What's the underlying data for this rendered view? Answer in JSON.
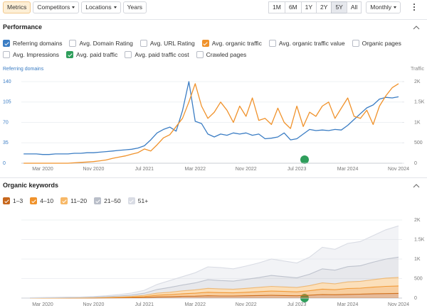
{
  "toolbar": {
    "tabs": [
      {
        "label": "Metrics",
        "active": true,
        "dropdown": false
      },
      {
        "label": "Competitors",
        "dropdown": true
      },
      {
        "label": "Locations",
        "dropdown": true
      },
      {
        "label": "Years",
        "dropdown": false
      }
    ],
    "ranges": [
      {
        "label": "1M"
      },
      {
        "label": "6M"
      },
      {
        "label": "1Y"
      },
      {
        "label": "2Y"
      },
      {
        "label": "5Y",
        "active": true
      },
      {
        "label": "All"
      }
    ],
    "interval": "Monthly"
  },
  "performance_metrics": [
    {
      "label": "Referring domains",
      "checked": true,
      "color": "#3b7dc4"
    },
    {
      "label": "Avg. Domain Rating",
      "checked": false
    },
    {
      "label": "Avg. URL Rating",
      "checked": false
    },
    {
      "label": "Avg. organic traffic",
      "checked": true,
      "color": "#f0922b"
    },
    {
      "label": "Avg. organic traffic value",
      "checked": false
    },
    {
      "label": "Organic pages",
      "checked": false
    },
    {
      "label": "Avg. Impressions",
      "checked": false
    },
    {
      "label": "Avg. paid traffic",
      "checked": true,
      "color": "#2e9e5b"
    },
    {
      "label": "Avg. paid traffic cost",
      "checked": false
    },
    {
      "label": "Crawled pages",
      "checked": false
    }
  ],
  "chart_data": [
    {
      "type": "line",
      "title": "Performance",
      "y_label": "Referring domains",
      "y2_label": "Traffic",
      "categories": [
        null,
        null,
        null,
        "Mar 2020",
        null,
        null,
        null,
        null,
        null,
        null,
        null,
        "Nov 2020",
        null,
        null,
        null,
        null,
        null,
        null,
        null,
        "Jul 2021",
        null,
        null,
        null,
        null,
        null,
        null,
        null,
        "Mar 2022",
        null,
        null,
        null,
        null,
        null,
        null,
        null,
        "Nov 2022",
        null,
        null,
        null,
        null,
        null,
        null,
        null,
        "Jul 2023",
        null,
        null,
        null,
        null,
        null,
        null,
        null,
        "Mar 2024",
        null,
        null,
        null,
        null,
        null,
        null,
        null,
        "Nov 2024"
      ],
      "series": [
        {
          "color": "#3b7dc4",
          "axis": "y",
          "values": [
            16,
            16,
            16,
            15,
            15,
            16,
            16,
            16,
            17,
            17,
            18,
            18,
            19,
            20,
            21,
            22,
            23,
            24,
            26,
            30,
            40,
            52,
            58,
            62,
            55,
            90,
            140,
            72,
            68,
            50,
            45,
            50,
            48,
            52,
            50,
            52,
            48,
            50,
            42,
            43,
            45,
            52,
            40,
            42,
            50,
            58,
            56,
            57,
            56,
            58,
            57,
            65,
            75,
            85,
            95,
            100,
            110,
            113,
            112,
            114
          ]
        },
        {
          "color": "#f0922b",
          "axis": "y2",
          "values": [
            0,
            0,
            0,
            0,
            0,
            0,
            0,
            0,
            10,
            20,
            30,
            40,
            60,
            80,
            120,
            150,
            180,
            220,
            260,
            350,
            300,
            450,
            620,
            700,
            900,
            1100,
            1500,
            1950,
            1400,
            1100,
            1250,
            1500,
            1300,
            1000,
            1400,
            1150,
            1600,
            1050,
            1100,
            950,
            1350,
            1000,
            850,
            1400,
            900,
            1250,
            1150,
            1400,
            1500,
            1100,
            1350,
            1600,
            1150,
            1100,
            1300,
            950,
            1400,
            1650,
            1850,
            1950
          ]
        }
      ],
      "ylim": [
        0,
        140
      ],
      "yticks": [
        0,
        35,
        70,
        105,
        140
      ],
      "y2lim": [
        0,
        2000
      ],
      "y2ticks": [
        0,
        500,
        {
          "value": 1000,
          "label": "1K"
        },
        {
          "value": 1500,
          "label": "1.5K"
        },
        {
          "value": 2000,
          "label": "2K"
        }
      ],
      "grid": true
    },
    {
      "type": "stacked_area",
      "title": "Organic keywords",
      "categories": [
        null,
        "Mar 2020",
        null,
        null,
        null,
        "Nov 2020",
        null,
        null,
        null,
        "Jul 2021",
        null,
        null,
        null,
        "Mar 2022",
        null,
        null,
        null,
        "Nov 2022",
        null,
        null,
        null,
        "Jul 2023",
        null,
        null,
        null,
        "Mar 2024",
        null,
        null,
        null,
        "Nov 2024"
      ],
      "series": [
        {
          "name": "1–3",
          "color": "#c7671c",
          "values": [
            1,
            1,
            2,
            2,
            3,
            4,
            5,
            8,
            10,
            15,
            30,
            35,
            45,
            50,
            60,
            55,
            55,
            60,
            65,
            70,
            65,
            60,
            75,
            90,
            85,
            95,
            100,
            110,
            115,
            120
          ]
        },
        {
          "name": "4–10",
          "color": "#f0922b",
          "values": [
            1,
            2,
            2,
            3,
            3,
            5,
            7,
            10,
            15,
            25,
            45,
            55,
            65,
            75,
            90,
            85,
            80,
            90,
            100,
            110,
            105,
            100,
            115,
            140,
            130,
            150,
            155,
            170,
            185,
            190
          ]
        },
        {
          "name": "11–20",
          "color": "#f7b867",
          "values": [
            1,
            2,
            2,
            3,
            4,
            5,
            8,
            12,
            18,
            30,
            50,
            60,
            75,
            85,
            100,
            95,
            90,
            100,
            110,
            120,
            115,
            110,
            130,
            160,
            150,
            170,
            175,
            190,
            210,
            220
          ]
        },
        {
          "name": "21–50",
          "color": "#b9bec9",
          "values": [
            3,
            4,
            6,
            7,
            8,
            10,
            15,
            25,
            35,
            55,
            95,
            125,
            150,
            180,
            220,
            215,
            210,
            230,
            250,
            280,
            265,
            250,
            290,
            360,
            350,
            390,
            400,
            450,
            490,
            520
          ]
        },
        {
          "name": "51+",
          "color": "#d9dce4",
          "values": [
            4,
            6,
            8,
            10,
            12,
            16,
            25,
            35,
            52,
            75,
            130,
            175,
            215,
            260,
            330,
            330,
            315,
            340,
            375,
            420,
            400,
            380,
            440,
            550,
            535,
            595,
            620,
            680,
            750,
            800
          ]
        }
      ],
      "ylim": [
        0,
        2000
      ],
      "yticks": [
        0,
        500,
        {
          "value": 1000,
          "label": "1K"
        },
        {
          "value": 1500,
          "label": "1.5K"
        },
        {
          "value": 2000,
          "label": "2K"
        }
      ],
      "y_axis_side": "right",
      "grid": true
    }
  ]
}
